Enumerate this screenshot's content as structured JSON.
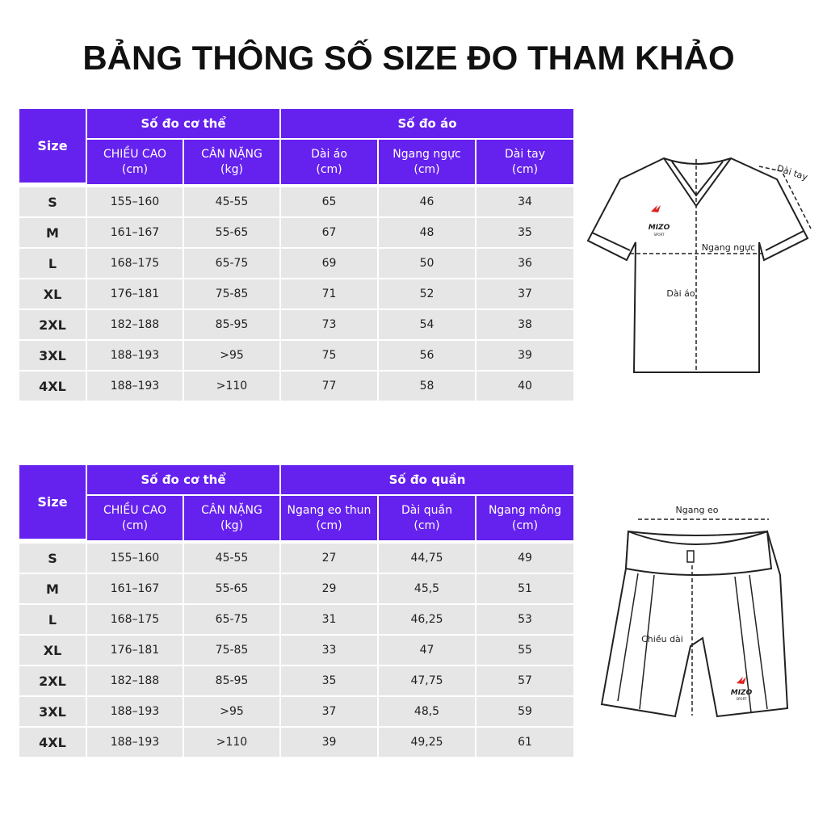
{
  "title": "BẢNG THÔNG SỐ SIZE ĐO THAM KHẢO",
  "tables": [
    {
      "size_header": "Size",
      "group_headers": [
        "Số đo cơ thể",
        "Số đo áo"
      ],
      "column_headers": [
        [
          "CHIỀU CAO",
          "(cm)"
        ],
        [
          "CÂN NẶNG",
          "(kg)"
        ],
        [
          "Dài áo",
          "(cm)"
        ],
        [
          "Ngang ngực",
          "(cm)"
        ],
        [
          "Dài tay",
          "(cm)"
        ]
      ],
      "rows": [
        [
          "S",
          "155–160",
          "45-55",
          65,
          46,
          34
        ],
        [
          "M",
          "161–167",
          "55-65",
          67,
          48,
          35
        ],
        [
          "L",
          "168–175",
          "65-75",
          69,
          50,
          36
        ],
        [
          "XL",
          "176–181",
          "75-85",
          71,
          52,
          37
        ],
        [
          "2XL",
          "182–188",
          "85-95",
          73,
          54,
          38
        ],
        [
          "3XL",
          "188–193",
          ">95",
          75,
          56,
          39
        ],
        [
          "4XL",
          "188–193",
          ">110",
          77,
          58,
          40
        ]
      ]
    },
    {
      "size_header": "Size",
      "group_headers": [
        "Số đo cơ thể",
        "Số đo quần"
      ],
      "column_headers": [
        [
          "CHIỀU CAO",
          "(cm)"
        ],
        [
          "CÂN NẶNG",
          "(kg)"
        ],
        [
          "Ngang eo thun",
          "(cm)"
        ],
        [
          "Dài quần",
          "(cm)"
        ],
        [
          "Ngang mông",
          "(cm)"
        ]
      ],
      "rows": [
        [
          "S",
          "155–160",
          "45-55",
          27,
          "44,75",
          49
        ],
        [
          "M",
          "161–167",
          "55-65",
          29,
          "45,5",
          51
        ],
        [
          "L",
          "168–175",
          "65-75",
          31,
          "46,25",
          53
        ],
        [
          "XL",
          "176–181",
          "75-85",
          33,
          47,
          55
        ],
        [
          "2XL",
          "182–188",
          "85-95",
          35,
          "47,75",
          57
        ],
        [
          "3XL",
          "188–193",
          ">95",
          37,
          "48,5",
          59
        ],
        [
          "4XL",
          "188–193",
          ">110",
          39,
          "49,25",
          61
        ]
      ]
    }
  ],
  "diagrams": {
    "shirt": {
      "sleeve_label": "Dài tay",
      "chest_label": "Ngang ngực",
      "length_label": "Dài áo",
      "brand": "MIZO",
      "brand_sub": "SPORT"
    },
    "shorts": {
      "waist_label": "Ngang eo",
      "length_label": "Chiều dài",
      "brand": "MIZO",
      "brand_sub": "SPORT"
    }
  }
}
